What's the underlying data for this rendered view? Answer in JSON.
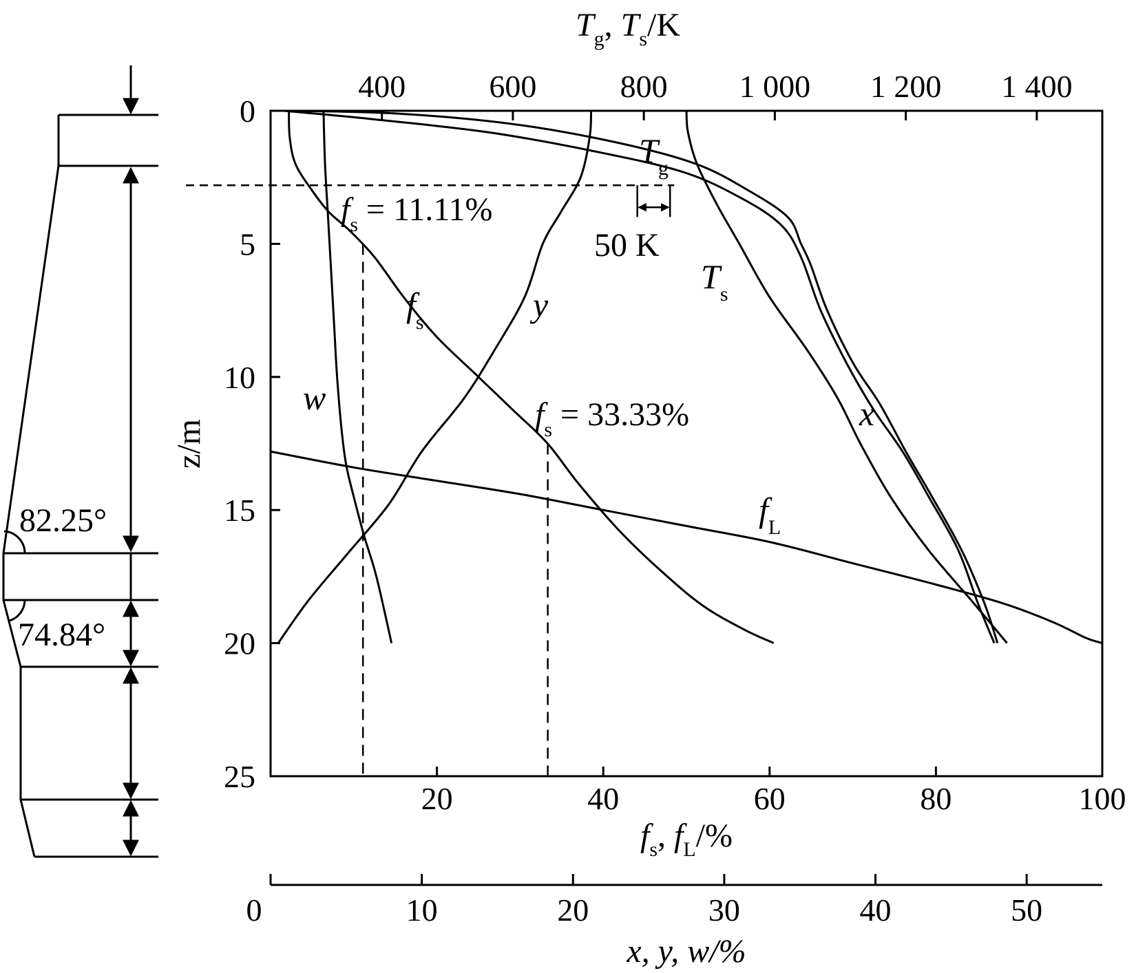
{
  "chart_data": {
    "type": "line",
    "axes": {
      "z": {
        "label": "z/m",
        "range": [
          0,
          25
        ],
        "ticks": [
          "0",
          "5",
          "10",
          "15",
          "20",
          "25"
        ],
        "inverted": true
      },
      "fs_fL": {
        "label_main": "f",
        "sub1": "s",
        "sep": ", ",
        "sub2": "L",
        "unit": "/%",
        "range": [
          0,
          100
        ],
        "ticks": [
          "20",
          "40",
          "60",
          "80",
          "100"
        ]
      },
      "temperature": {
        "label_T1": "T",
        "sub1": "g",
        "sep": ", ",
        "label_T2": "T",
        "sub2": "s",
        "unit": "/K",
        "range": [
          230,
          1500
        ],
        "ticks": [
          "400",
          "600",
          "800",
          "1 000",
          "1 200",
          "1 400"
        ],
        "tick_values": [
          400,
          600,
          800,
          1000,
          1200,
          1400
        ]
      },
      "xyw": {
        "label": "x, y, w/%",
        "range": [
          0,
          55
        ],
        "ticks": [
          "0",
          "10",
          "20",
          "30",
          "40",
          "50"
        ],
        "tick_values": [
          0,
          10,
          20,
          30,
          40,
          50
        ]
      }
    },
    "series": [
      {
        "name": "T_g",
        "axis": "temperature",
        "points": [
          [
            250,
            0
          ],
          [
            420,
            0.1
          ],
          [
            600,
            0.5
          ],
          [
            760,
            1.2
          ],
          [
            880,
            2
          ],
          [
            960,
            3
          ],
          [
            1020,
            4
          ],
          [
            1040,
            5
          ],
          [
            1055,
            5.8
          ],
          [
            1080,
            7.5
          ],
          [
            1120,
            9.5
          ],
          [
            1160,
            11
          ],
          [
            1200,
            12.8
          ],
          [
            1240,
            14.5
          ],
          [
            1285,
            16.5
          ],
          [
            1320,
            18.5
          ],
          [
            1340,
            20
          ]
        ]
      },
      {
        "name": "T_s",
        "axis": "temperature",
        "points": [
          [
            250,
            0
          ],
          [
            380,
            0.3
          ],
          [
            560,
            0.8
          ],
          [
            720,
            1.5
          ],
          [
            860,
            2.3
          ],
          [
            950,
            3.3
          ],
          [
            1010,
            4.3
          ],
          [
            1040,
            5.5
          ],
          [
            1070,
            7.5
          ],
          [
            1110,
            9.5
          ],
          [
            1150,
            11.2
          ],
          [
            1195,
            12.8
          ],
          [
            1235,
            14.5
          ],
          [
            1280,
            16.5
          ],
          [
            1310,
            18.5
          ],
          [
            1335,
            20
          ]
        ]
      },
      {
        "name": "x",
        "axis": "xyw",
        "points": [
          [
            27.5,
            0
          ],
          [
            27.6,
            0.8
          ],
          [
            28.2,
            2
          ],
          [
            29.5,
            3.5
          ],
          [
            31,
            5
          ],
          [
            33,
            7
          ],
          [
            35.5,
            9
          ],
          [
            37.5,
            10.8
          ],
          [
            39,
            12.5
          ],
          [
            41,
            14.5
          ],
          [
            43.5,
            16.5
          ],
          [
            46.5,
            18.5
          ],
          [
            48.7,
            20
          ]
        ]
      },
      {
        "name": "y",
        "axis": "xyw",
        "points": [
          [
            21.2,
            0
          ],
          [
            21.1,
            1
          ],
          [
            20.5,
            2.5
          ],
          [
            19.2,
            3.8
          ],
          [
            18,
            5
          ],
          [
            16.8,
            7
          ],
          [
            14.8,
            9
          ],
          [
            12.8,
            10.8
          ],
          [
            10,
            12.8
          ],
          [
            7.8,
            14.8
          ],
          [
            5,
            16.7
          ],
          [
            2.5,
            18.4
          ],
          [
            0.5,
            20
          ]
        ]
      },
      {
        "name": "w",
        "axis": "xyw",
        "points": [
          [
            3.5,
            0
          ],
          [
            3.6,
            2
          ],
          [
            3.8,
            4
          ],
          [
            4,
            6
          ],
          [
            4.2,
            8
          ],
          [
            4.4,
            10
          ],
          [
            4.7,
            12
          ],
          [
            5,
            13.3
          ],
          [
            5.5,
            14.5
          ],
          [
            6.2,
            16
          ],
          [
            7,
            17.5
          ],
          [
            8,
            20
          ]
        ]
      },
      {
        "name": "f_s",
        "axis": "fs_fL",
        "points": [
          [
            2.2,
            0
          ],
          [
            2.3,
            1
          ],
          [
            3,
            2
          ],
          [
            5,
            3
          ],
          [
            7,
            3.8
          ],
          [
            9.5,
            4.5
          ],
          [
            12.5,
            5.5
          ],
          [
            16,
            7
          ],
          [
            20,
            8.5
          ],
          [
            25,
            10
          ],
          [
            29,
            11.2
          ],
          [
            33.3,
            12.5
          ],
          [
            37,
            14
          ],
          [
            42,
            15.8
          ],
          [
            47,
            17.3
          ],
          [
            52,
            18.6
          ],
          [
            57,
            19.5
          ],
          [
            60.5,
            20
          ]
        ]
      },
      {
        "name": "f_L",
        "axis": "fs_fL",
        "points": [
          [
            0,
            12.8
          ],
          [
            10,
            13.4
          ],
          [
            20,
            13.9
          ],
          [
            30,
            14.4
          ],
          [
            40,
            15
          ],
          [
            50,
            15.6
          ],
          [
            60,
            16.2
          ],
          [
            70,
            17
          ],
          [
            80,
            17.8
          ],
          [
            88,
            18.5
          ],
          [
            94,
            19.2
          ],
          [
            98,
            19.8
          ],
          [
            100,
            20
          ]
        ]
      }
    ],
    "curve_labels": {
      "T_g": {
        "main": "T",
        "sub": "g"
      },
      "T_s": {
        "main": "T",
        "sub": "s"
      },
      "x": {
        "main": "x"
      },
      "y": {
        "main": "y"
      },
      "w": {
        "main": "w"
      },
      "f_s": {
        "main": "f",
        "sub": "s"
      },
      "f_L": {
        "main": "f",
        "sub": "L"
      }
    },
    "annotations": {
      "fs1": {
        "main": "f",
        "sub": "s",
        "text": " = 11.11%",
        "fs_value": 11.11,
        "z": 5
      },
      "fs2": {
        "main": "f",
        "sub": "s",
        "text": " = 33.33%",
        "fs_value": 33.33,
        "z": 12.5
      },
      "delta_T": {
        "text": "50 K",
        "T_from": 790,
        "T_to": 840,
        "z": 3.5
      },
      "ref_line_z": 2.8
    },
    "furnace_profile": {
      "angle_upper": "82.25°",
      "angle_lower": "74.84°"
    }
  }
}
